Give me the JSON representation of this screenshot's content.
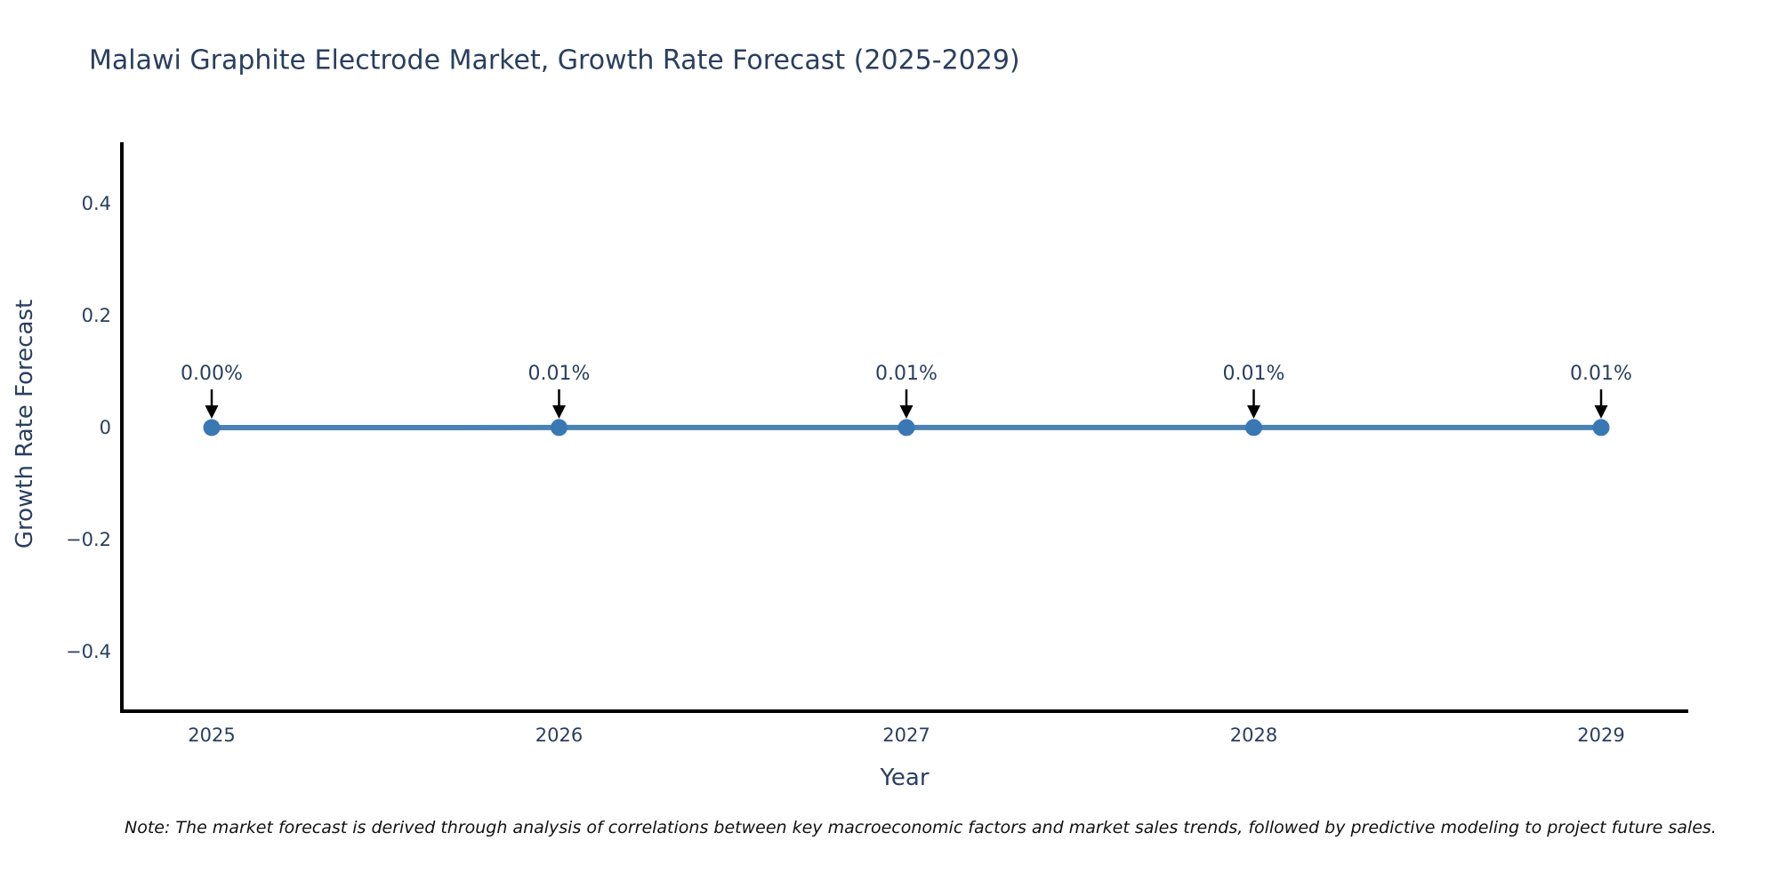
{
  "chart_data": {
    "type": "line",
    "title": "Malawi Graphite Electrode Market, Growth Rate Forecast (2025-2029)",
    "xlabel": "Year",
    "ylabel": "Growth Rate Forecast",
    "categories": [
      "2025",
      "2026",
      "2027",
      "2028",
      "2029"
    ],
    "values": [
      0.0,
      0.0001,
      0.0001,
      0.0001,
      0.0001
    ],
    "point_labels": [
      "0.00%",
      "0.01%",
      "0.01%",
      "0.01%",
      "0.01%"
    ],
    "yticks": [
      0.4,
      0.2,
      0,
      -0.2,
      -0.4
    ],
    "ylim": [
      -0.51,
      0.51
    ],
    "grid": false,
    "legend": false,
    "colors": {
      "line": "#4b82b4",
      "marker": "#3a78b4",
      "axis": "#000000",
      "text": "#2a3f5f",
      "annotation_arrow": "#000000"
    },
    "note": "Note: The market forecast is derived through analysis of correlations between key macroeconomic factors and market sales trends, followed by predictive modeling to project future sales."
  }
}
